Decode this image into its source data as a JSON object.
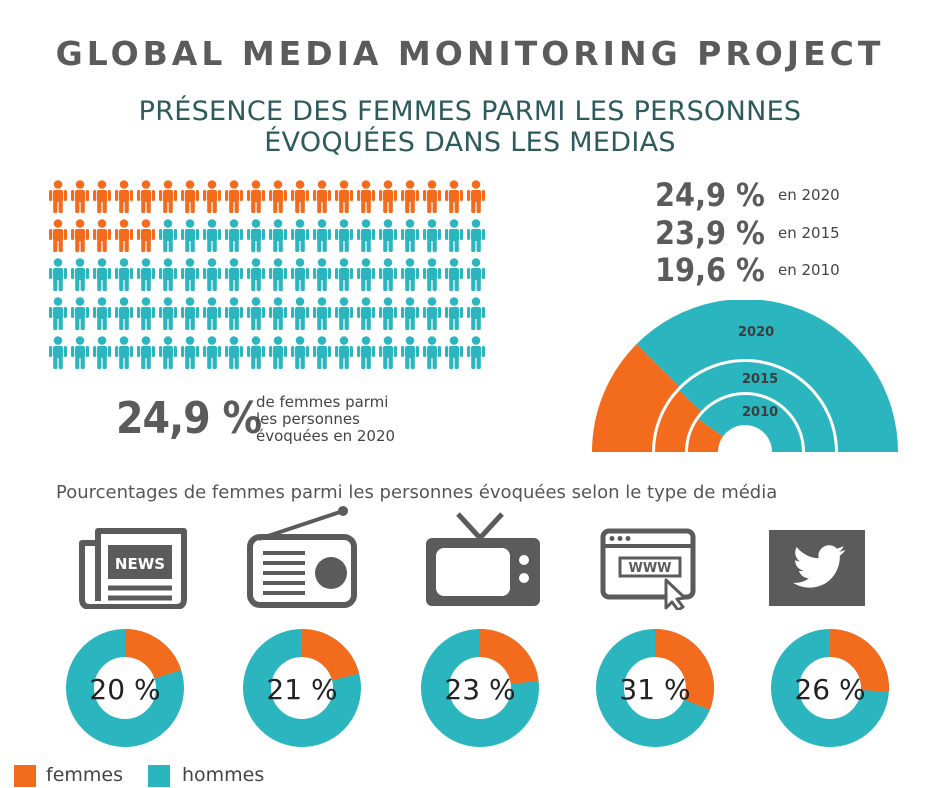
{
  "title": "GLOBAL MEDIA MONITORING PROJECT",
  "subtitle_lines": [
    "PRÉSENCE DES FEMMES PARMI LES PERSONNES",
    "ÉVOQUÉES DANS LES MEDIAS"
  ],
  "colors": {
    "femmes": "#f36b1c",
    "hommes": "#2bb5bf",
    "text": "#5b5b5b",
    "icon": "#5b5b5b"
  },
  "pictogram": {
    "rows": 5,
    "per_row": 20,
    "femmes_count": 25,
    "big_value": "24,9 %",
    "description_lines": [
      "de femmes parmi",
      "les personnes",
      "évoquées en 2020"
    ]
  },
  "year_stats": [
    {
      "value": "24,9 %",
      "label": "en 2020"
    },
    {
      "value": "23,9 %",
      "label": "en 2015"
    },
    {
      "value": "19,6 %",
      "label": "en 2010"
    }
  ],
  "media_section_title": "Pourcentages de femmes parmi les personnes évoquées selon le type de média",
  "legend": {
    "femmes": "femmes",
    "hommes": "hommes"
  },
  "chart_data": [
    {
      "type": "pie",
      "subtype": "nested-half-donut",
      "series": [
        {
          "name": "2020",
          "femmes_pct": 24.9
        },
        {
          "name": "2015",
          "femmes_pct": 23.9
        },
        {
          "name": "2010",
          "femmes_pct": 19.6
        }
      ]
    },
    {
      "type": "pie",
      "subtype": "donut",
      "categories": [
        "journaux",
        "radio",
        "télévision",
        "internet",
        "twitter"
      ],
      "icons": [
        "newspaper-icon",
        "radio-icon",
        "tv-icon",
        "web-browser-icon",
        "twitter-icon"
      ],
      "values": [
        20,
        21,
        23,
        31,
        26
      ],
      "labels": [
        "20 %",
        "21 %",
        "23 %",
        "31 %",
        "26 %"
      ]
    }
  ]
}
